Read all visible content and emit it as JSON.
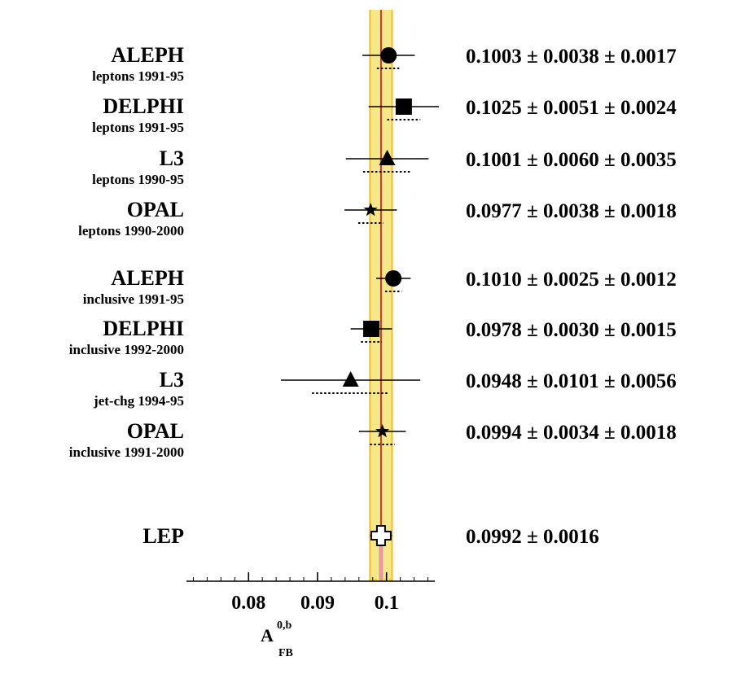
{
  "chart_data": {
    "type": "forest",
    "x_axis": {
      "label": "A",
      "label_sup": "0,b",
      "label_sub": "FB",
      "range": [
        0.071,
        0.107
      ],
      "ticks": [
        0.08,
        0.09,
        0.1
      ],
      "tick_labels": [
        "0.08",
        "0.09",
        "0.1"
      ],
      "minor_step": 0.002
    },
    "combined_band": {
      "center": 0.0992,
      "error": 0.0016,
      "band_color": "#f6e88a",
      "band_edge_color": "#f0c020",
      "line_color": "#c0392b"
    },
    "entries": [
      {
        "experiment": "ALEPH",
        "sub": "leptons 1991-95",
        "marker": "circle",
        "value": 0.1003,
        "stat": 0.0038,
        "syst": 0.0017,
        "label": "0.1003 ± 0.0038 ± 0.0017"
      },
      {
        "experiment": "DELPHI",
        "sub": "leptons 1991-95",
        "marker": "square",
        "value": 0.1025,
        "stat": 0.0051,
        "syst": 0.0024,
        "label": "0.1025 ± 0.0051 ± 0.0024"
      },
      {
        "experiment": "L3",
        "sub": "leptons 1990-95",
        "marker": "triangle",
        "value": 0.1001,
        "stat": 0.006,
        "syst": 0.0035,
        "label": "0.1001 ± 0.0060 ± 0.0035"
      },
      {
        "experiment": "OPAL",
        "sub": "leptons 1990-2000",
        "marker": "star",
        "value": 0.0977,
        "stat": 0.0038,
        "syst": 0.0018,
        "label": "0.0977 ± 0.0038 ± 0.0018"
      },
      {
        "experiment": "ALEPH",
        "sub": "inclusive 1991-95",
        "marker": "circle",
        "value": 0.101,
        "stat": 0.0025,
        "syst": 0.0012,
        "label": "0.1010 ± 0.0025 ± 0.0012"
      },
      {
        "experiment": "DELPHI",
        "sub": "inclusive 1992-2000",
        "marker": "square",
        "value": 0.0978,
        "stat": 0.003,
        "syst": 0.0015,
        "label": "0.0978 ± 0.0030 ± 0.0015"
      },
      {
        "experiment": "L3",
        "sub": "jet-chg 1994-95",
        "marker": "triangle",
        "value": 0.0948,
        "stat": 0.0101,
        "syst": 0.0056,
        "label": "0.0948 ± 0.0101 ± 0.0056"
      },
      {
        "experiment": "OPAL",
        "sub": "inclusive 1991-2000",
        "marker": "star",
        "value": 0.0994,
        "stat": 0.0034,
        "syst": 0.0018,
        "label": "0.0994 ± 0.0034 ± 0.0018"
      }
    ],
    "combined": {
      "experiment": "LEP",
      "sub": "",
      "marker": "open-cross",
      "value": 0.0992,
      "error": 0.0016,
      "label": "0.0992 ± 0.0016"
    }
  }
}
